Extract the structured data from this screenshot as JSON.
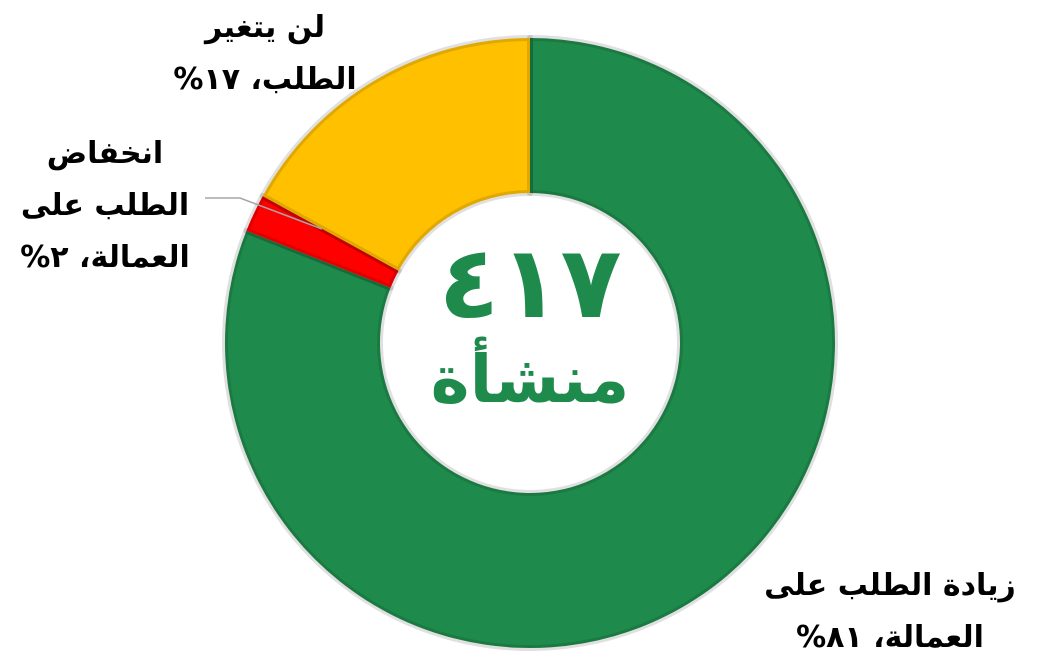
{
  "chart_data": {
    "type": "pie",
    "donut": true,
    "categories": [
      "زيادة الطلب على العمالة،",
      "انخفاض الطلب على العمالة،",
      "لن يتغير الطلب،"
    ],
    "values": [
      81,
      2,
      17
    ],
    "value_labels": [
      "٨١%",
      "٢%",
      "١٧%"
    ],
    "colors": [
      "#1e8b4c",
      "#ff0000",
      "#ffc000"
    ],
    "annotations": [
      "٤١٧",
      "منشأة"
    ]
  }
}
